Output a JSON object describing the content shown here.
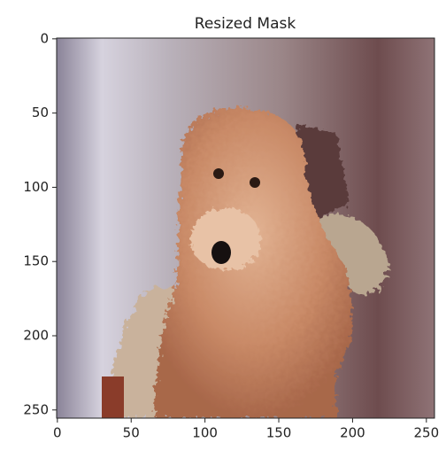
{
  "chart_data": {
    "type": "image",
    "title": "Resized Mask",
    "xlim": [
      -0.5,
      255.5
    ],
    "ylim": [
      255.5,
      -0.5
    ],
    "xticks": [
      0,
      50,
      100,
      150,
      200,
      250
    ],
    "yticks": [
      0,
      50,
      100,
      150,
      200,
      250
    ]
  }
}
